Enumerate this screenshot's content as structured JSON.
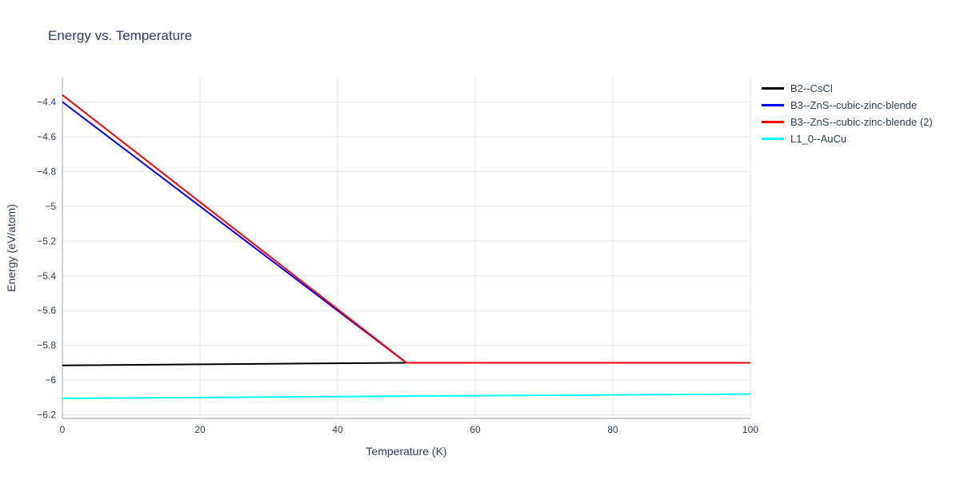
{
  "chart_data": {
    "type": "line",
    "title": "Energy vs. Temperature",
    "xlabel": "Temperature (K)",
    "ylabel": "Energy (eV/atom)",
    "xlim": [
      0,
      100
    ],
    "ylim": [
      -6.22,
      -4.26
    ],
    "x_ticks": [
      0,
      20,
      40,
      60,
      80,
      100
    ],
    "y_ticks": [
      -4.4,
      -4.6,
      -4.8,
      -5,
      -5.2,
      -5.4,
      -5.6,
      -5.8,
      -6,
      -6.2
    ],
    "grid": true,
    "legend_position": "top-right-outside",
    "series": [
      {
        "name": "B2--CsCl",
        "color": "#000000",
        "x": [
          0,
          50,
          100
        ],
        "y": [
          -5.915,
          -5.9,
          -5.9
        ]
      },
      {
        "name": "B3--ZnS--cubic-zinc-blende",
        "color": "#0000ff",
        "x": [
          0,
          50,
          100
        ],
        "y": [
          -4.4,
          -5.9,
          -5.9
        ]
      },
      {
        "name": "B3--ZnS--cubic-zinc-blende (2)",
        "color": "#ff0000",
        "x": [
          0,
          50,
          100
        ],
        "y": [
          -4.36,
          -5.9,
          -5.9
        ]
      },
      {
        "name": "L1_0--AuCu",
        "color": "#00ffff",
        "x": [
          0,
          50,
          100
        ],
        "y": [
          -6.105,
          -6.092,
          -6.08
        ]
      }
    ]
  },
  "colors": {
    "text": "#2a3f5f",
    "grid": "#e5e5e5",
    "axis": "#9aa0a6"
  }
}
